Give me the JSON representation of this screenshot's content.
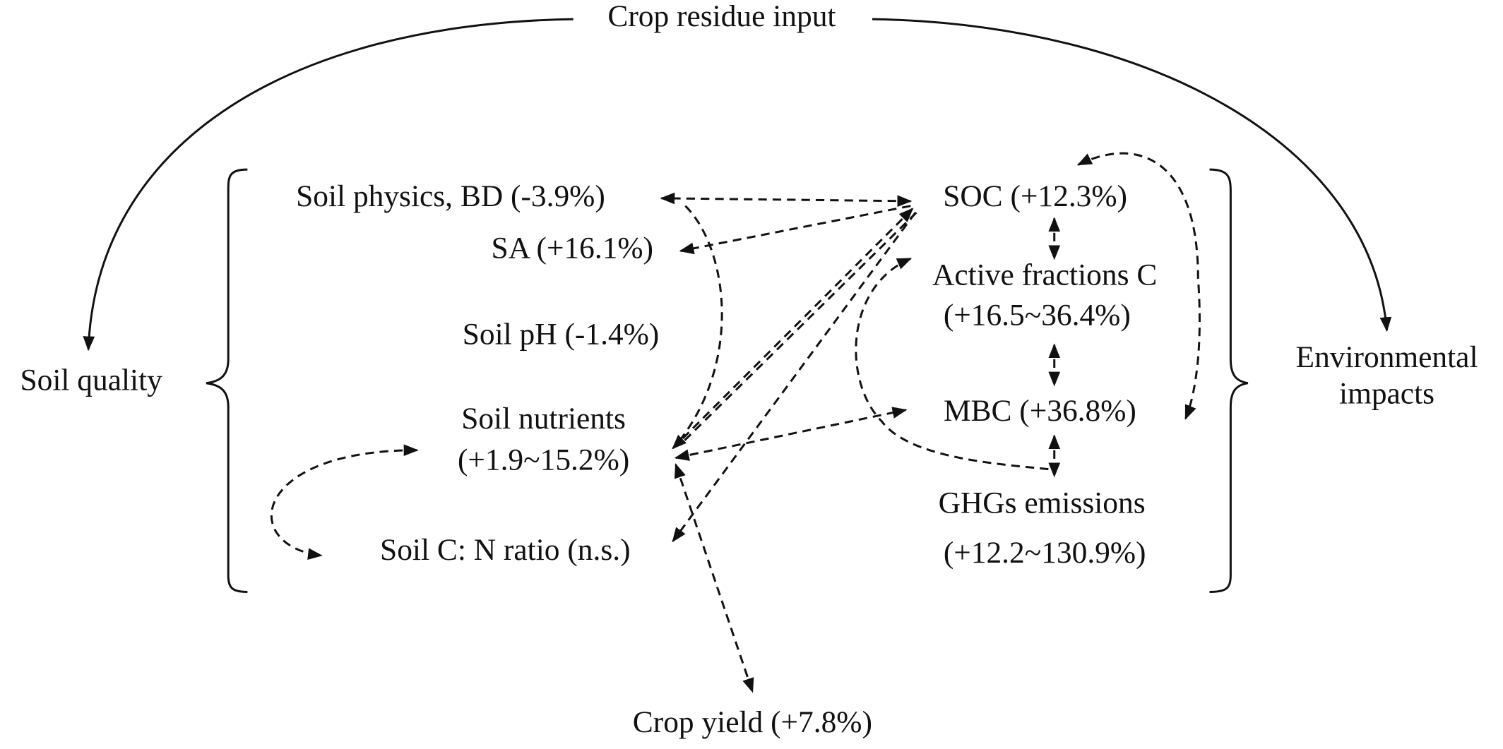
{
  "header": {
    "title": "Crop residue input"
  },
  "groups": [
    {
      "lines": [
        "Soil quality"
      ]
    },
    {
      "lines": [
        "Environmental",
        "impacts"
      ]
    }
  ],
  "nodes": [
    {
      "lines": [
        "Soil physics, BD (-3.9%)"
      ]
    },
    {
      "lines": [
        "SA (+16.1%)"
      ]
    },
    {
      "lines": [
        "Soil pH (-1.4%)"
      ]
    },
    {
      "lines": [
        "Soil nutrients",
        "(+1.9~15.2%)"
      ]
    },
    {
      "lines": [
        "Soil C: N ratio (n.s.)"
      ]
    },
    {
      "lines": [
        "SOC (+12.3%)"
      ]
    },
    {
      "lines": [
        "Active fractions C",
        "(+16.5~36.4%)"
      ]
    },
    {
      "lines": [
        "MBC (+36.8%)"
      ]
    },
    {
      "lines": [
        "GHGs emissions",
        "(+12.2~130.9%)"
      ]
    },
    {
      "lines": [
        "Crop yield (+7.8%)"
      ]
    }
  ]
}
